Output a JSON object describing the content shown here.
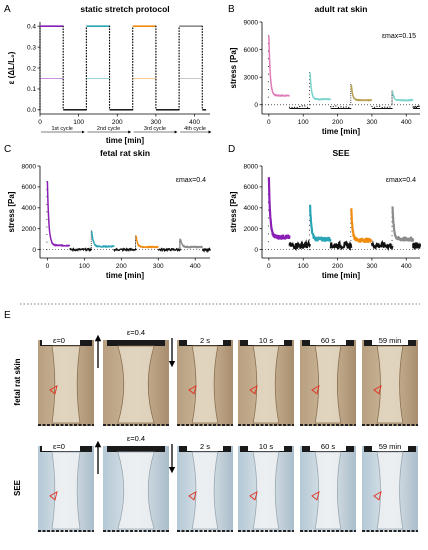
{
  "panel_labels": {
    "A": "A",
    "B": "B",
    "C": "C",
    "D": "D",
    "E": "E"
  },
  "colors": {
    "purple": "#8a1fb5",
    "teal": "#2aa5b5",
    "orange": "#f08c10",
    "gray": "#8c8c8c",
    "pink": "#e07ab8",
    "lightteal": "#7ad4cc",
    "olive": "#b8a050",
    "black": "#111111",
    "red": "#e03020"
  },
  "cycle_labels": [
    "1st cycle",
    "2nd cycle",
    "3rd cycle",
    "4th cycle"
  ],
  "chart_data": [
    {
      "id": "A",
      "type": "line",
      "title": "static stretch protocol",
      "xlabel": "time [min]",
      "ylabel": "ε (ΔL/L₀)",
      "xlim": [
        0,
        440
      ],
      "ylim": [
        -0.02,
        0.42
      ],
      "xticks": [
        0,
        100,
        200,
        300,
        400
      ],
      "yticks": [
        0.0,
        0.1,
        0.2,
        0.3,
        0.4
      ],
      "ytick_labels": [
        "0.0",
        "0.1",
        "0.2",
        "0.3",
        "0.4"
      ],
      "grid": false,
      "series": [
        {
          "color": "purple",
          "x_start": 0,
          "x_end": 60
        },
        {
          "color": "teal",
          "x_start": 120,
          "x_end": 180
        },
        {
          "color": "orange",
          "x_start": 240,
          "x_end": 300
        },
        {
          "color": "gray",
          "x_start": 360,
          "x_end": 420
        }
      ],
      "hold_strain": 0.4,
      "secondary_strain": 0.15
    },
    {
      "id": "B",
      "type": "line",
      "title": "adult rat skin",
      "annotation": "εmax=0.15",
      "xlabel": "time [min]",
      "ylabel": "stress [Pa]",
      "xlim": [
        -20,
        440
      ],
      "ylim": [
        -1000,
        9000
      ],
      "xticks": [
        0,
        100,
        200,
        300,
        400
      ],
      "yticks": [
        0,
        3000,
        6000,
        9000
      ],
      "grid": false,
      "series": [
        {
          "color": "pink",
          "x_start": 0,
          "x_end": 60,
          "peak": 7500,
          "end": 1000
        },
        {
          "color": "lightteal",
          "x_start": 120,
          "x_end": 180,
          "peak": 3500,
          "end": 600
        },
        {
          "color": "olive",
          "x_start": 240,
          "x_end": 300,
          "peak": 2200,
          "end": 500
        },
        {
          "color": "lightteal",
          "x_start": 360,
          "x_end": 420,
          "peak": 1500,
          "end": 500
        }
      ]
    },
    {
      "id": "C",
      "type": "line",
      "title": "fetal rat skin",
      "annotation": "εmax=0.4",
      "xlabel": "time [min]",
      "ylabel": "stress [Pa]",
      "xlim": [
        -20,
        440
      ],
      "ylim": [
        -800,
        8000
      ],
      "xticks": [
        0,
        100,
        200,
        300,
        400
      ],
      "yticks": [
        0,
        2000,
        4000,
        6000,
        8000
      ],
      "grid": false,
      "series": [
        {
          "color": "purple",
          "x_start": 0,
          "x_end": 60,
          "peak": 6500,
          "end": 400
        },
        {
          "color": "teal",
          "x_start": 120,
          "x_end": 180,
          "peak": 1800,
          "end": 300
        },
        {
          "color": "orange",
          "x_start": 240,
          "x_end": 300,
          "peak": 1300,
          "end": 250
        },
        {
          "color": "gray",
          "x_start": 360,
          "x_end": 420,
          "peak": 1000,
          "end": 250
        }
      ]
    },
    {
      "id": "D",
      "type": "line",
      "title": "SEE",
      "annotation": "εmax=0.4",
      "xlabel": "time [min]",
      "ylabel": "stress [Pa]",
      "xlim": [
        -20,
        440
      ],
      "ylim": [
        -800,
        8000
      ],
      "xticks": [
        0,
        100,
        200,
        300,
        400
      ],
      "yticks": [
        0,
        2000,
        4000,
        6000,
        8000
      ],
      "grid": false,
      "series": [
        {
          "color": "purple",
          "x_start": 0,
          "x_end": 60,
          "peak": 6800,
          "end": 1200
        },
        {
          "color": "teal",
          "x_start": 120,
          "x_end": 180,
          "peak": 4200,
          "end": 1000
        },
        {
          "color": "orange",
          "x_start": 240,
          "x_end": 300,
          "peak": 3800,
          "end": 900
        },
        {
          "color": "gray",
          "x_start": 360,
          "x_end": 420,
          "peak": 4000,
          "end": 1000
        }
      ]
    }
  ],
  "photo_panel": {
    "rows": [
      {
        "label": "fetal rat skin",
        "strain_labels": [
          "ε=0",
          "ε=0.4"
        ],
        "time_labels": [
          "2 s",
          "10 s",
          "60 s",
          "59 min"
        ]
      },
      {
        "label": "SEE",
        "strain_labels": [
          "ε=0",
          "ε=0.4"
        ],
        "time_labels": [
          "2 s",
          "10 s",
          "60 s",
          "59 min"
        ]
      }
    ]
  }
}
